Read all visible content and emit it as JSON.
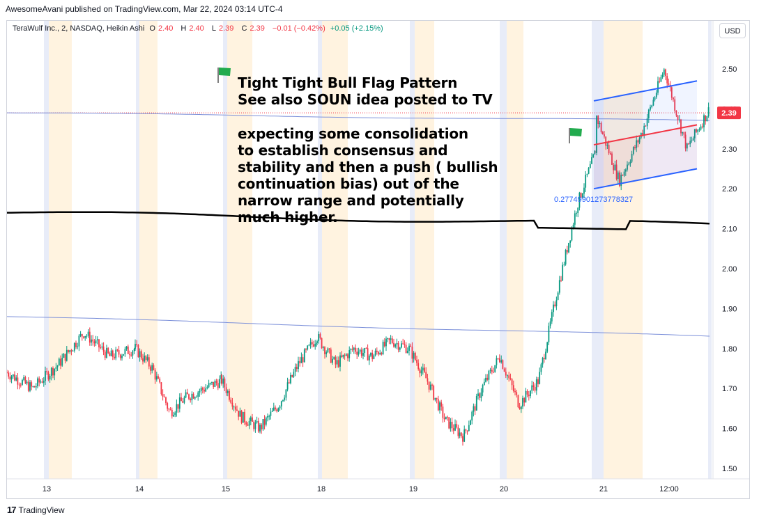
{
  "header": {
    "publisher_line": "AwesomeAvani published on TradingView.com, Mar 22, 2024 03:14 UTC-4"
  },
  "legend": {
    "symbol": "TeraWulf Inc., 2, NASDAQ, Heikin Ashi",
    "o_label": "O",
    "o_value": "2.40",
    "h_label": "H",
    "h_value": "2.40",
    "l_label": "L",
    "l_value": "2.39",
    "c_label": "C",
    "c_value": "2.39",
    "change": "−0.01 (−0.42%)",
    "change2": "+0.05 (+2.15%)"
  },
  "currency_button": "USD",
  "annotation": {
    "title_lines": [
      "Tight Tight Bull Flag Pattern",
      "See also SOUN idea posted to TV"
    ],
    "body_lines": [
      "expecting some consolidation",
      "to establish consensus and",
      "stability and then a push ( bullish",
      "continuation bias) out of the",
      "narrow range and potentially",
      "much higher."
    ]
  },
  "flag_label": "0.27749901273778327",
  "footer": {
    "brand": "TradingView",
    "logo_text": "17"
  },
  "colors": {
    "up": "#089981",
    "down": "#f23645",
    "ma_slow": "#000000",
    "ma_fast": "#7b8fd9",
    "channel": "#2962ff",
    "midline": "#f23645",
    "flag": "#22ab4e",
    "session_pre": "#fff3e0",
    "session_post": "#e8ecf8"
  },
  "chart_data": {
    "type": "candlestick",
    "chart_style": "Heikin Ashi",
    "interval": "2",
    "ylim": [
      1.47,
      2.56
    ],
    "y_ticks": [
      "2.50",
      "2.40",
      "2.30",
      "2.20",
      "2.10",
      "2.00",
      "1.90",
      "1.80",
      "1.70",
      "1.60",
      "1.50"
    ],
    "x_ticks": [
      "13",
      "14",
      "15",
      "18",
      "19",
      "20",
      "21",
      "12:00"
    ],
    "last_price": "2.39",
    "close_path_by_day": [
      {
        "day": "13",
        "points": [
          1.74,
          1.7,
          1.76,
          1.84,
          1.78,
          1.8
        ]
      },
      {
        "day": "14",
        "points": [
          1.8,
          1.75,
          1.64,
          1.68,
          1.7,
          1.72
        ]
      },
      {
        "day": "15",
        "points": [
          1.72,
          1.63,
          1.6,
          1.66,
          1.76,
          1.83
        ]
      },
      {
        "day": "18",
        "points": [
          1.83,
          1.76,
          1.8,
          1.78,
          1.82,
          1.8
        ]
      },
      {
        "day": "19",
        "points": [
          1.8,
          1.72,
          1.62,
          1.58,
          1.7,
          1.78
        ]
      },
      {
        "day": "20",
        "points": [
          1.78,
          1.66,
          1.72,
          1.95,
          2.16,
          2.3
        ]
      },
      {
        "day": "21",
        "points": [
          2.38,
          2.22,
          2.34,
          2.5,
          2.3,
          2.4
        ]
      }
    ],
    "moving_averages": [
      {
        "name": "",
        "start": 2.14,
        "end": 2.11
      },
      {
        "name": "",
        "start": 2.39,
        "end": 2.37
      },
      {
        "name": "",
        "start": 1.88,
        "end": 1.83
      }
    ],
    "channel": {
      "upper": [
        2.42,
        2.47
      ],
      "lower": [
        2.2,
        2.25
      ],
      "mid": [
        2.31,
        2.36
      ]
    }
  }
}
